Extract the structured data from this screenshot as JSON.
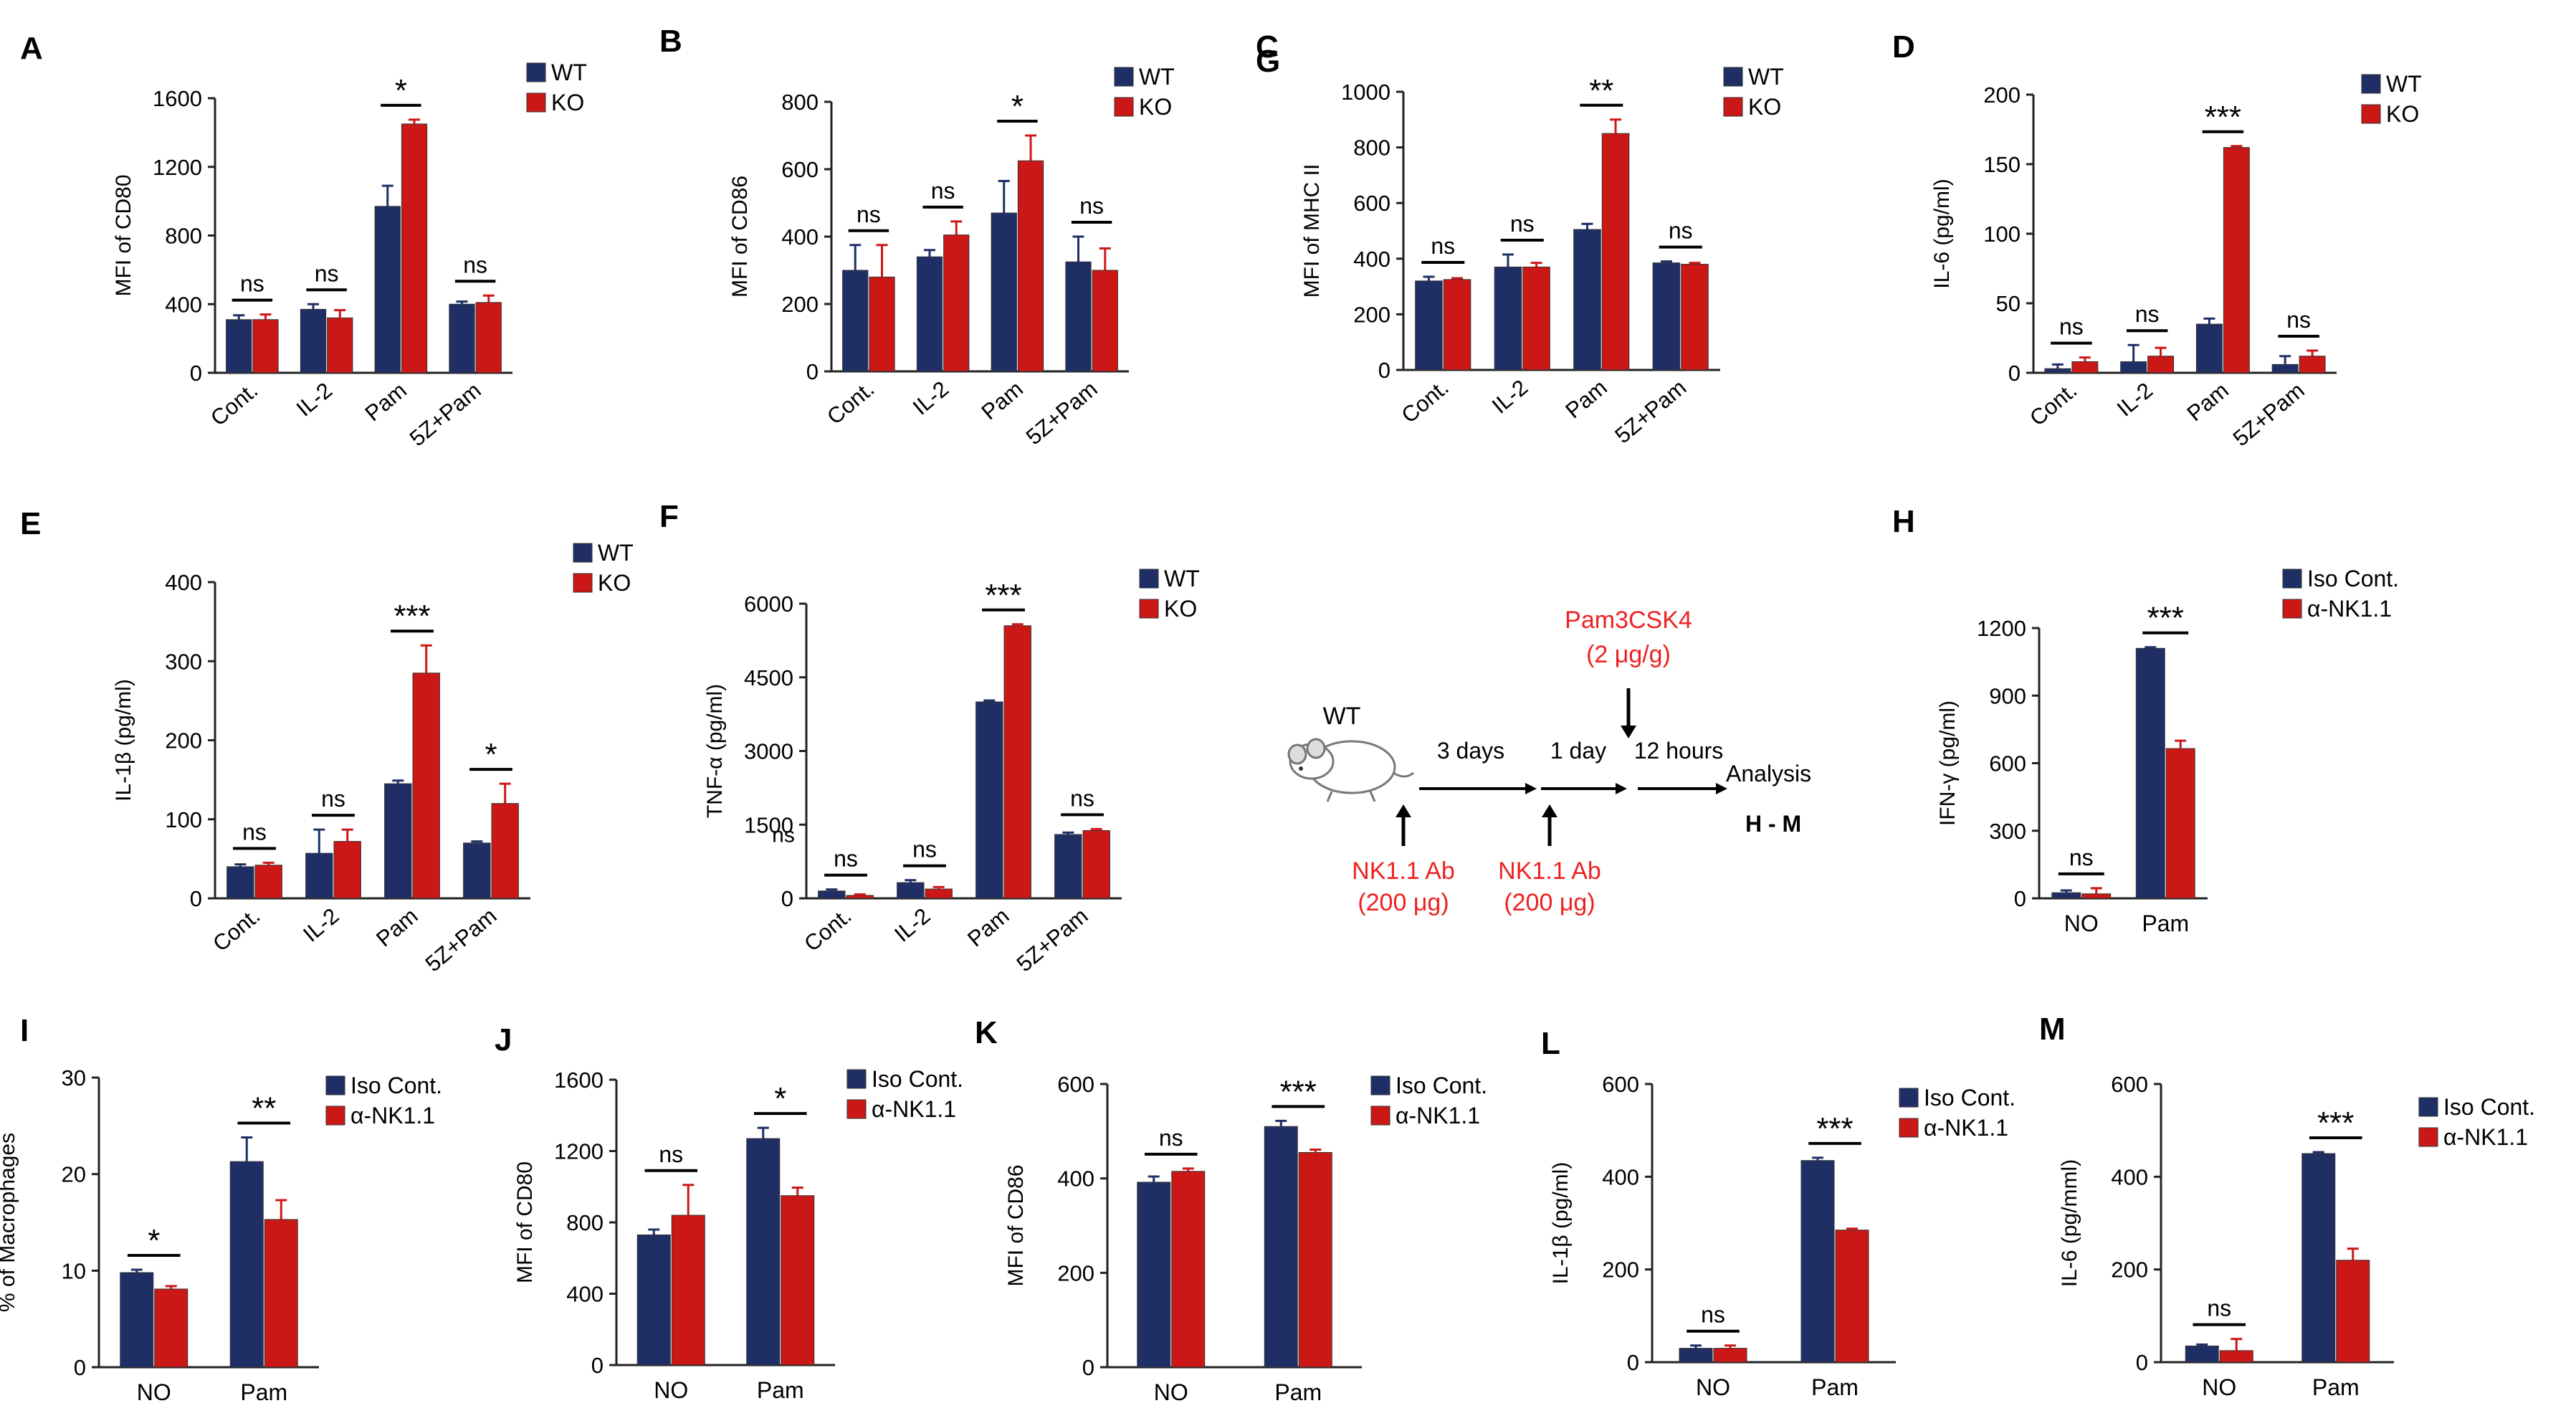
{
  "colors": {
    "wt": "#1f2f66",
    "ko": "#cc1717",
    "iso": "#1f2f66",
    "nk": "#cc1717",
    "axis": "#222222",
    "schema_red": "#ee2222"
  },
  "chart_data": [
    {
      "panel": "A",
      "type": "bar",
      "ylabel": "MFI of CD80",
      "ylim": [
        0,
        1600
      ],
      "yticks": [
        "0",
        "400",
        "800",
        "1200",
        "1600"
      ],
      "categories": [
        "Cont.",
        "IL-2",
        "Pam",
        "5Z+Pam"
      ],
      "rotate_xticks": true,
      "series": [
        {
          "name": "WT",
          "values": [
            310,
            370,
            970,
            400
          ],
          "errors": [
            25,
            30,
            120,
            15
          ]
        },
        {
          "name": "KO",
          "values": [
            310,
            320,
            1450,
            410
          ],
          "errors": [
            30,
            45,
            25,
            40
          ]
        }
      ],
      "legend": [
        "WT",
        "KO"
      ],
      "significance": [
        "ns",
        "ns",
        "*",
        "ns"
      ]
    },
    {
      "panel": "B",
      "type": "bar",
      "ylabel": "MFI of CD86",
      "ylim": [
        0,
        800
      ],
      "yticks": [
        "0",
        "200",
        "400",
        "600",
        "800"
      ],
      "categories": [
        "Cont.",
        "IL-2",
        "Pam",
        "5Z+Pam"
      ],
      "rotate_xticks": true,
      "series": [
        {
          "name": "WT",
          "values": [
            300,
            340,
            470,
            325
          ],
          "errors": [
            75,
            20,
            95,
            75
          ]
        },
        {
          "name": "KO",
          "values": [
            280,
            405,
            625,
            300
          ],
          "errors": [
            95,
            40,
            75,
            65
          ]
        }
      ],
      "legend": [
        "WT",
        "KO"
      ],
      "significance": [
        "ns",
        "ns",
        "*",
        "ns"
      ]
    },
    {
      "panel": "C",
      "type": "bar",
      "ylabel": "MFI of MHC II",
      "ylim": [
        0,
        1000
      ],
      "yticks": [
        "0",
        "200",
        "400",
        "600",
        "800",
        "1000"
      ],
      "categories": [
        "Cont.",
        "IL-2",
        "Pam",
        "5Z+Pam"
      ],
      "rotate_xticks": true,
      "series": [
        {
          "name": "WT",
          "values": [
            320,
            370,
            505,
            385
          ],
          "errors": [
            15,
            45,
            20,
            5
          ]
        },
        {
          "name": "KO",
          "values": [
            325,
            370,
            850,
            380
          ],
          "errors": [
            5,
            15,
            50,
            5
          ]
        }
      ],
      "legend": [
        "WT",
        "KO"
      ],
      "significance": [
        "ns",
        "ns",
        "**",
        "ns"
      ]
    },
    {
      "panel": "D",
      "type": "bar",
      "ylabel": "IL-6 (pg/ml)",
      "ylim": [
        0,
        200
      ],
      "yticks": [
        "0",
        "50",
        "100",
        "150",
        "200"
      ],
      "categories": [
        "Cont.",
        "IL-2",
        "Pam",
        "5Z+Pam"
      ],
      "rotate_xticks": true,
      "series": [
        {
          "name": "WT",
          "values": [
            3,
            8,
            35,
            6
          ],
          "errors": [
            3,
            12,
            4,
            6
          ]
        },
        {
          "name": "KO",
          "values": [
            8,
            12,
            162,
            12
          ],
          "errors": [
            3,
            6,
            1,
            4
          ]
        }
      ],
      "legend": [
        "WT",
        "KO"
      ],
      "significance": [
        "ns",
        "ns",
        "***",
        "ns"
      ]
    },
    {
      "panel": "E",
      "type": "bar",
      "ylabel": "IL-1β (pg/ml)",
      "ylim": [
        0,
        400
      ],
      "yticks": [
        "0",
        "100",
        "200",
        "300",
        "400"
      ],
      "categories": [
        "Cont.",
        "IL-2",
        "Pam",
        "5Z+Pam"
      ],
      "rotate_xticks": true,
      "series": [
        {
          "name": "WT",
          "values": [
            40,
            57,
            145,
            70
          ],
          "errors": [
            3,
            30,
            4,
            2
          ]
        },
        {
          "name": "KO",
          "values": [
            42,
            72,
            285,
            120
          ],
          "errors": [
            3,
            15,
            35,
            25
          ]
        }
      ],
      "legend": [
        "WT",
        "KO"
      ],
      "significance": [
        "ns",
        "ns",
        "***",
        "*"
      ]
    },
    {
      "panel": "F",
      "type": "bar",
      "ylabel": "TNF-α (pg/ml)",
      "ylim": [
        0,
        6000
      ],
      "yticks": [
        "0",
        "1500",
        "3000",
        "4500",
        "6000"
      ],
      "categories": [
        "Cont.",
        "IL-2",
        "Pam",
        "5Z+Pam"
      ],
      "rotate_xticks": true,
      "series": [
        {
          "name": "WT",
          "values": [
            150,
            320,
            4000,
            1300
          ],
          "errors": [
            30,
            50,
            30,
            40
          ]
        },
        {
          "name": "KO",
          "values": [
            60,
            190,
            5550,
            1380
          ],
          "errors": [
            20,
            40,
            30,
            30
          ]
        }
      ],
      "legend": [
        "WT",
        "KO"
      ],
      "significance": [
        "ns",
        "ns",
        "***",
        "ns"
      ],
      "extra_text": "ns"
    },
    {
      "panel": "H",
      "type": "bar",
      "ylabel": "IFN-γ (pg/ml)",
      "ylim": [
        0,
        1200
      ],
      "yticks": [
        "0",
        "300",
        "600",
        "900",
        "1200"
      ],
      "categories": [
        "NO",
        "Pam"
      ],
      "rotate_xticks": false,
      "series": [
        {
          "name": "Iso Cont.",
          "values": [
            25,
            1110
          ],
          "errors": [
            10,
            5
          ]
        },
        {
          "name": "α-NK1.1",
          "values": [
            20,
            665
          ],
          "errors": [
            25,
            35
          ]
        }
      ],
      "legend": [
        "Iso Cont.",
        "α-NK1.1"
      ],
      "significance": [
        "ns",
        "***"
      ]
    },
    {
      "panel": "I",
      "type": "bar",
      "ylabel": "% of Macrophages",
      "ylim": [
        0,
        30
      ],
      "yticks": [
        "0",
        "10",
        "20",
        "30"
      ],
      "categories": [
        "NO",
        "Pam"
      ],
      "rotate_xticks": false,
      "series": [
        {
          "name": "Iso Cont.",
          "values": [
            9.8,
            21.3
          ],
          "errors": [
            0.3,
            2.5
          ]
        },
        {
          "name": "α-NK1.1",
          "values": [
            8.1,
            15.3
          ],
          "errors": [
            0.3,
            2.0
          ]
        }
      ],
      "legend": [
        "Iso Cont.",
        "α-NK1.1"
      ],
      "significance": [
        "*",
        "**"
      ]
    },
    {
      "panel": "J",
      "type": "bar",
      "ylabel": "MFI of CD80",
      "ylim": [
        0,
        1600
      ],
      "yticks": [
        "0",
        "400",
        "800",
        "1200",
        "1600"
      ],
      "categories": [
        "NO",
        "Pam"
      ],
      "rotate_xticks": false,
      "series": [
        {
          "name": "Iso Cont.",
          "values": [
            730,
            1270
          ],
          "errors": [
            30,
            60
          ]
        },
        {
          "name": "α-NK1.1",
          "values": [
            840,
            950
          ],
          "errors": [
            170,
            45
          ]
        }
      ],
      "legend": [
        "Iso Cont.",
        "α-NK1.1"
      ],
      "significance": [
        "ns",
        "*"
      ]
    },
    {
      "panel": "K",
      "type": "bar",
      "ylabel": "MFI of CD86",
      "ylim": [
        0,
        600
      ],
      "yticks": [
        "0",
        "200",
        "400",
        "600"
      ],
      "categories": [
        "NO",
        "Pam"
      ],
      "rotate_xticks": false,
      "series": [
        {
          "name": "Iso Cont.",
          "values": [
            392,
            510
          ],
          "errors": [
            12,
            12
          ]
        },
        {
          "name": "α-NK1.1",
          "values": [
            415,
            455
          ],
          "errors": [
            6,
            6
          ]
        }
      ],
      "legend": [
        "Iso Cont.",
        "α-NK1.1"
      ],
      "significance": [
        "ns",
        "***"
      ]
    },
    {
      "panel": "L",
      "type": "bar",
      "ylabel": "IL-1β (pg/ml)",
      "ylim": [
        0,
        600
      ],
      "yticks": [
        "0",
        "200",
        "400",
        "600"
      ],
      "categories": [
        "NO",
        "Pam"
      ],
      "rotate_xticks": false,
      "series": [
        {
          "name": "Iso Cont.",
          "values": [
            30,
            435
          ],
          "errors": [
            6,
            6
          ]
        },
        {
          "name": "α-NK1.1",
          "values": [
            30,
            285
          ],
          "errors": [
            6,
            3
          ]
        }
      ],
      "legend": [
        "Iso Cont.",
        "α-NK1.1"
      ],
      "significance": [
        "ns",
        "***"
      ]
    },
    {
      "panel": "M",
      "type": "bar",
      "ylabel": "IL-6 (pg/mml)",
      "ylim": [
        0,
        600
      ],
      "yticks": [
        "0",
        "200",
        "400",
        "600"
      ],
      "categories": [
        "NO",
        "Pam"
      ],
      "rotate_xticks": false,
      "series": [
        {
          "name": "Iso Cont.",
          "values": [
            35,
            450
          ],
          "errors": [
            3,
            3
          ]
        },
        {
          "name": "α-NK1.1",
          "values": [
            25,
            220
          ],
          "errors": [
            25,
            25
          ]
        }
      ],
      "legend": [
        "Iso Cont.",
        "α-NK1.1"
      ],
      "significance": [
        "ns",
        "***"
      ]
    }
  ],
  "schematic": {
    "panel": "G",
    "mouse_label": "WT",
    "step1": "3 days",
    "step2": "1 day",
    "step3": "12 hours",
    "end_label": "Analysis",
    "end_sub": "H - M",
    "inj1_line1": "NK1.1 Ab",
    "inj1_line2": "(200 μg)",
    "inj2_line1": "NK1.1 Ab",
    "inj2_line2": "(200 μg)",
    "pam_line1": "Pam3CSK4",
    "pam_line2": "(2 μg/g)"
  }
}
